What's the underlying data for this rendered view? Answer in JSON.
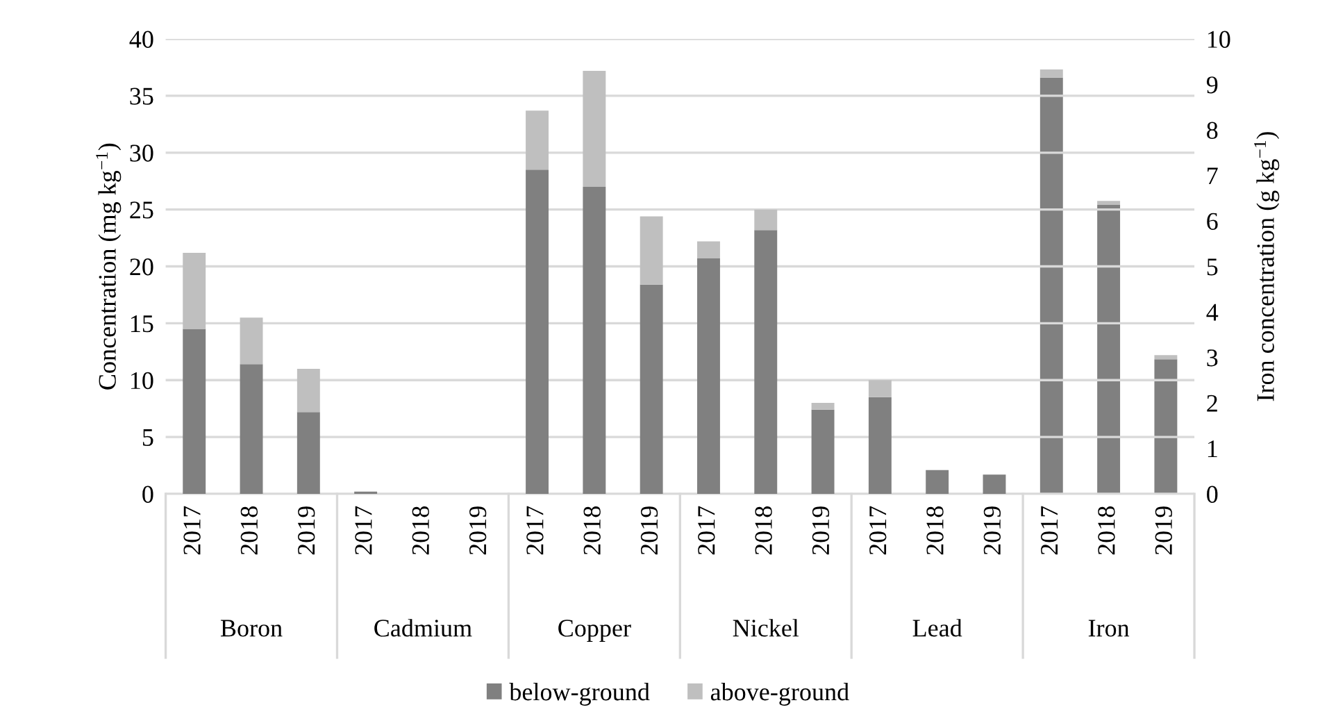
{
  "chart_data": {
    "type": "bar",
    "stacked": true,
    "ylabel": "Concentration (mg kg$^{−1}$)",
    "y2label": "Iron concentration (g kg$^{−1}$)",
    "categories": [
      "2017",
      "2018",
      "2019",
      "2017",
      "2018",
      "2019",
      "2017",
      "2018",
      "2019",
      "2017",
      "2018",
      "2019",
      "2017",
      "2018",
      "2019",
      "2017",
      "2018",
      "2019"
    ],
    "series": [
      {
        "name": "below-ground",
        "color": "#808080",
        "values": [
          14.5,
          11.4,
          7.2,
          0.2,
          0,
          0,
          28.5,
          27.0,
          18.4,
          20.7,
          23.2,
          7.4,
          8.5,
          2.1,
          1.7,
          null,
          null,
          null
        ]
      },
      {
        "name": "above-ground",
        "color": "#bfbfbf",
        "values": [
          6.7,
          4.1,
          3.8,
          0,
          0,
          0,
          5.2,
          10.2,
          6.0,
          1.5,
          1.8,
          0.6,
          1.5,
          0,
          0,
          null,
          null,
          null
        ]
      },
      {
        "color": "#808080",
        "axis": "y2",
        "values": [
          null,
          null,
          null,
          null,
          null,
          null,
          null,
          null,
          null,
          null,
          null,
          null,
          null,
          null,
          null,
          9.15,
          6.35,
          2.96
        ]
      },
      {
        "color": "#bfbfbf",
        "axis": "y2",
        "values": [
          null,
          null,
          null,
          null,
          null,
          null,
          null,
          null,
          null,
          null,
          null,
          null,
          null,
          null,
          null,
          0.18,
          0.09,
          0.09
        ]
      }
    ],
    "ylim": [
      0,
      40
    ],
    "yticks": [
      0,
      5,
      10,
      15,
      20,
      25,
      30,
      35,
      40
    ],
    "y2lim": [
      0,
      10
    ],
    "y2ticks": [
      0,
      1,
      2,
      3,
      4,
      5,
      6,
      7,
      8,
      9,
      10
    ],
    "grid": "y",
    "legend": "bottom",
    "annotations": [
      "Boron",
      "Cadmium",
      "Copper",
      "Nickel",
      "Lead",
      "Iron"
    ]
  }
}
